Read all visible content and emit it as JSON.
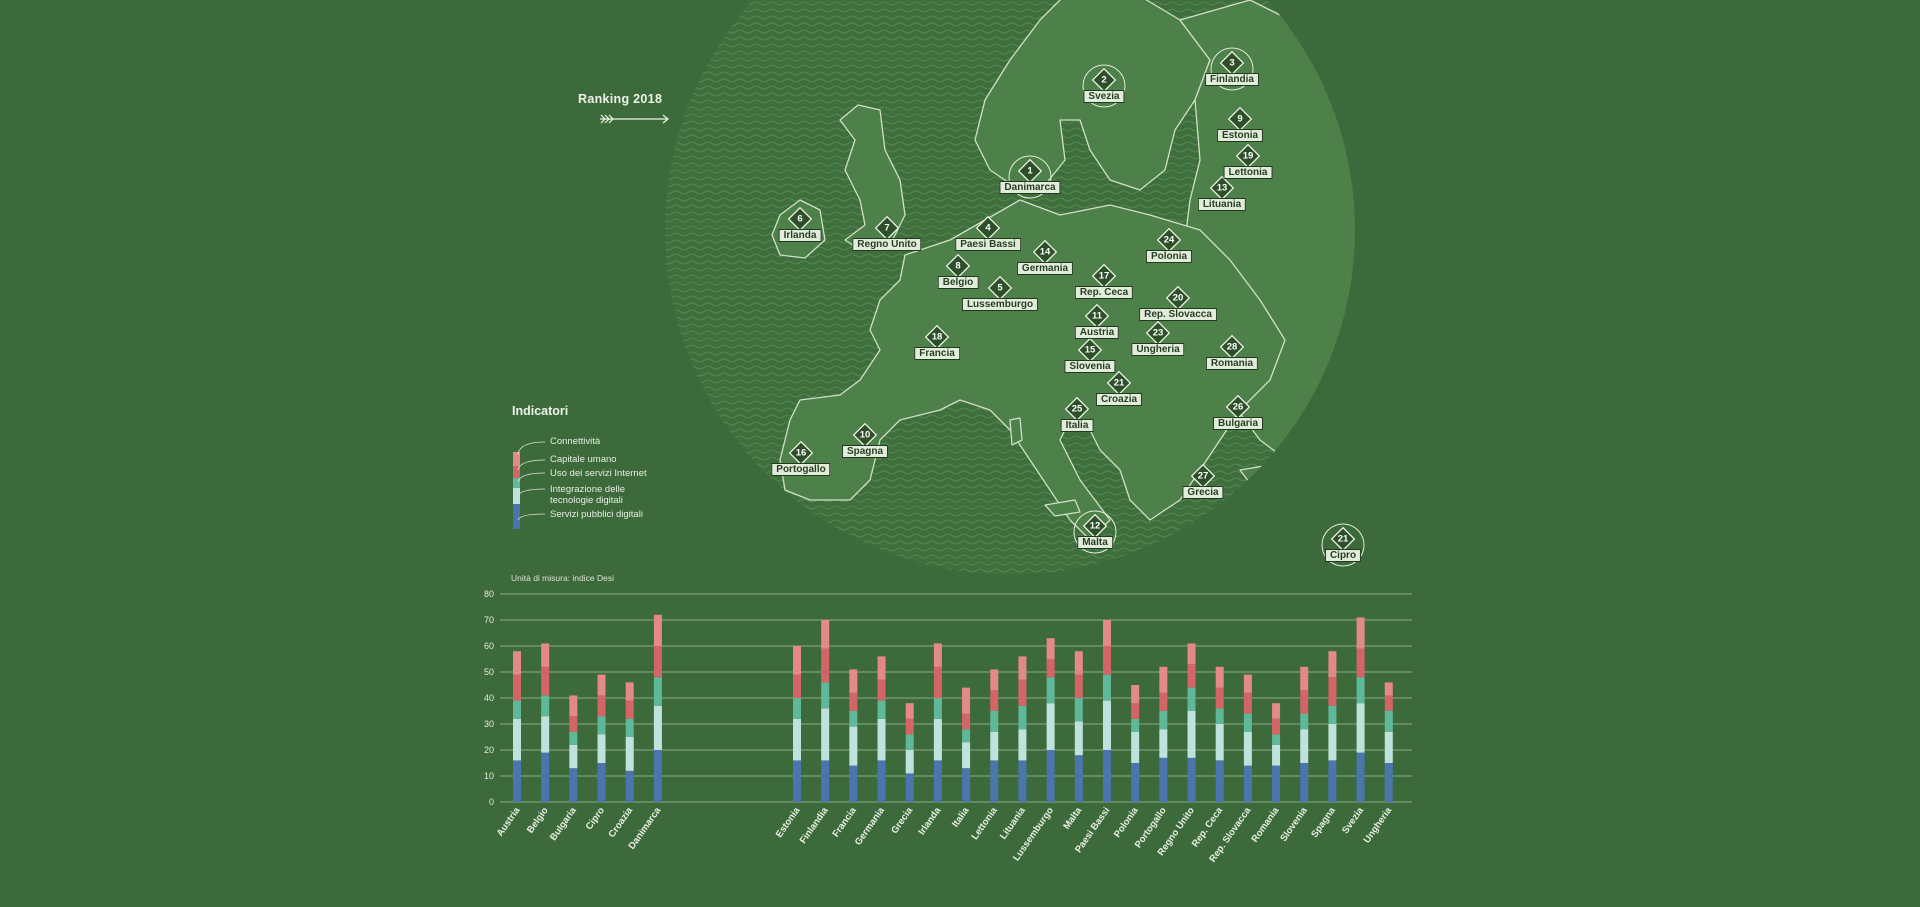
{
  "ranking": {
    "title": "Ranking 2018"
  },
  "map_countries": [
    {
      "name": "Danimarca",
      "rank": "1"
    },
    {
      "name": "Svezia",
      "rank": "2"
    },
    {
      "name": "Finlandia",
      "rank": "3"
    },
    {
      "name": "Paesi Bassi",
      "rank": "4"
    },
    {
      "name": "Lussemburgo",
      "rank": "5"
    },
    {
      "name": "Irlanda",
      "rank": "6"
    },
    {
      "name": "Regno Unito",
      "rank": "7"
    },
    {
      "name": "Belgio",
      "rank": "8"
    },
    {
      "name": "Estonia",
      "rank": "9"
    },
    {
      "name": "Spagna",
      "rank": "10"
    },
    {
      "name": "Austria",
      "rank": "11"
    },
    {
      "name": "Malta",
      "rank": "12"
    },
    {
      "name": "Lituania",
      "rank": "13"
    },
    {
      "name": "Germania",
      "rank": "14"
    },
    {
      "name": "Slovenia",
      "rank": "15"
    },
    {
      "name": "Portogallo",
      "rank": "16"
    },
    {
      "name": "Rep. Ceca",
      "rank": "17"
    },
    {
      "name": "Francia",
      "rank": "18"
    },
    {
      "name": "Lettonia",
      "rank": "19"
    },
    {
      "name": "Rep. Slovacca",
      "rank": "20"
    },
    {
      "name": "Croazia",
      "rank": "21"
    },
    {
      "name": "Cipro",
      "rank": "21"
    },
    {
      "name": "Ungheria",
      "rank": "23"
    },
    {
      "name": "Polonia",
      "rank": "24"
    },
    {
      "name": "Italia",
      "rank": "25"
    },
    {
      "name": "Bulgaria",
      "rank": "26"
    },
    {
      "name": "Grecia",
      "rank": "27"
    },
    {
      "name": "Romania",
      "rank": "28"
    }
  ],
  "legend": {
    "title": "Indicatori",
    "items": [
      {
        "label": "Connettività",
        "color": "#e38a86"
      },
      {
        "label": "Capitale umano",
        "color": "#d46566"
      },
      {
        "label": "Uso dei servizi Internet",
        "color": "#5fb89a"
      },
      {
        "label": "Integrazione delle tecnologie digitali",
        "color": "#bfe3dc"
      },
      {
        "label": "Servizi pubblici digitali",
        "color": "#4a75ad"
      }
    ]
  },
  "unit_label": "Unità di misura: indice Desi",
  "chart_data": {
    "type": "bar",
    "stacked": true,
    "title": "",
    "xlabel": "",
    "ylabel": "Unità di misura: indice Desi",
    "ylim": [
      0,
      80
    ],
    "yticks": [
      0,
      10,
      20,
      30,
      40,
      50,
      60,
      70,
      80
    ],
    "grid": true,
    "groups": [
      [
        "Austria",
        "Belgio",
        "Bulgaria",
        "Cipro",
        "Croazia",
        "Danimarca"
      ],
      [
        "Estonia",
        "Finlandia",
        "Francia",
        "Germania",
        "Grecia",
        "Irlanda",
        "Italia",
        "Lettonia",
        "Lituania",
        "Lussemburgo",
        "Malta",
        "Paesi Bassi",
        "Polonia",
        "Portogallo",
        "Regno Unito",
        "Rep. Ceca",
        "Rep. Slovacca",
        "Romania",
        "Slovenia",
        "Spagna",
        "Svezia",
        "Ungheria"
      ]
    ],
    "categories": [
      "Austria",
      "Belgio",
      "Bulgaria",
      "Cipro",
      "Croazia",
      "Danimarca",
      "Estonia",
      "Finlandia",
      "Francia",
      "Germania",
      "Grecia",
      "Irlanda",
      "Italia",
      "Lettonia",
      "Lituania",
      "Lussemburgo",
      "Malta",
      "Paesi Bassi",
      "Polonia",
      "Portogallo",
      "Regno Unito",
      "Rep. Ceca",
      "Rep. Slovacca",
      "Romania",
      "Slovenia",
      "Spagna",
      "Svezia",
      "Ungheria"
    ],
    "series": [
      {
        "name": "Servizi pubblici digitali",
        "color": "#4a75ad",
        "values": [
          16,
          19,
          13,
          15,
          12,
          20,
          16,
          16,
          14,
          16,
          11,
          16,
          13,
          16,
          16,
          20,
          18,
          20,
          15,
          17,
          17,
          16,
          14,
          14,
          15,
          16,
          19,
          15
        ]
      },
      {
        "name": "Integrazione delle tecnologie digitali",
        "color": "#bfe3dc",
        "values": [
          16,
          14,
          9,
          11,
          13,
          17,
          16,
          20,
          15,
          16,
          9,
          16,
          10,
          11,
          12,
          18,
          13,
          19,
          12,
          11,
          18,
          14,
          13,
          8,
          13,
          14,
          19,
          12
        ]
      },
      {
        "name": "Uso dei servizi Internet",
        "color": "#5fb89a",
        "values": [
          7,
          8,
          5,
          7,
          7,
          11,
          8,
          10,
          6,
          7,
          6,
          8,
          5,
          8,
          9,
          10,
          9,
          10,
          5,
          7,
          9,
          6,
          7,
          4,
          6,
          7,
          10,
          8
        ]
      },
      {
        "name": "Capitale umano",
        "color": "#d46566",
        "values": [
          10,
          11,
          6,
          8,
          7,
          12,
          9,
          13,
          7,
          8,
          6,
          12,
          6,
          8,
          10,
          7,
          9,
          11,
          6,
          7,
          9,
          8,
          8,
          6,
          9,
          11,
          11,
          6
        ]
      },
      {
        "name": "Connettività",
        "color": "#e38a86",
        "values": [
          9,
          9,
          8,
          8,
          7,
          12,
          11,
          11,
          9,
          9,
          6,
          9,
          10,
          8,
          9,
          8,
          9,
          10,
          7,
          10,
          8,
          8,
          7,
          6,
          9,
          10,
          12,
          5
        ]
      }
    ]
  }
}
